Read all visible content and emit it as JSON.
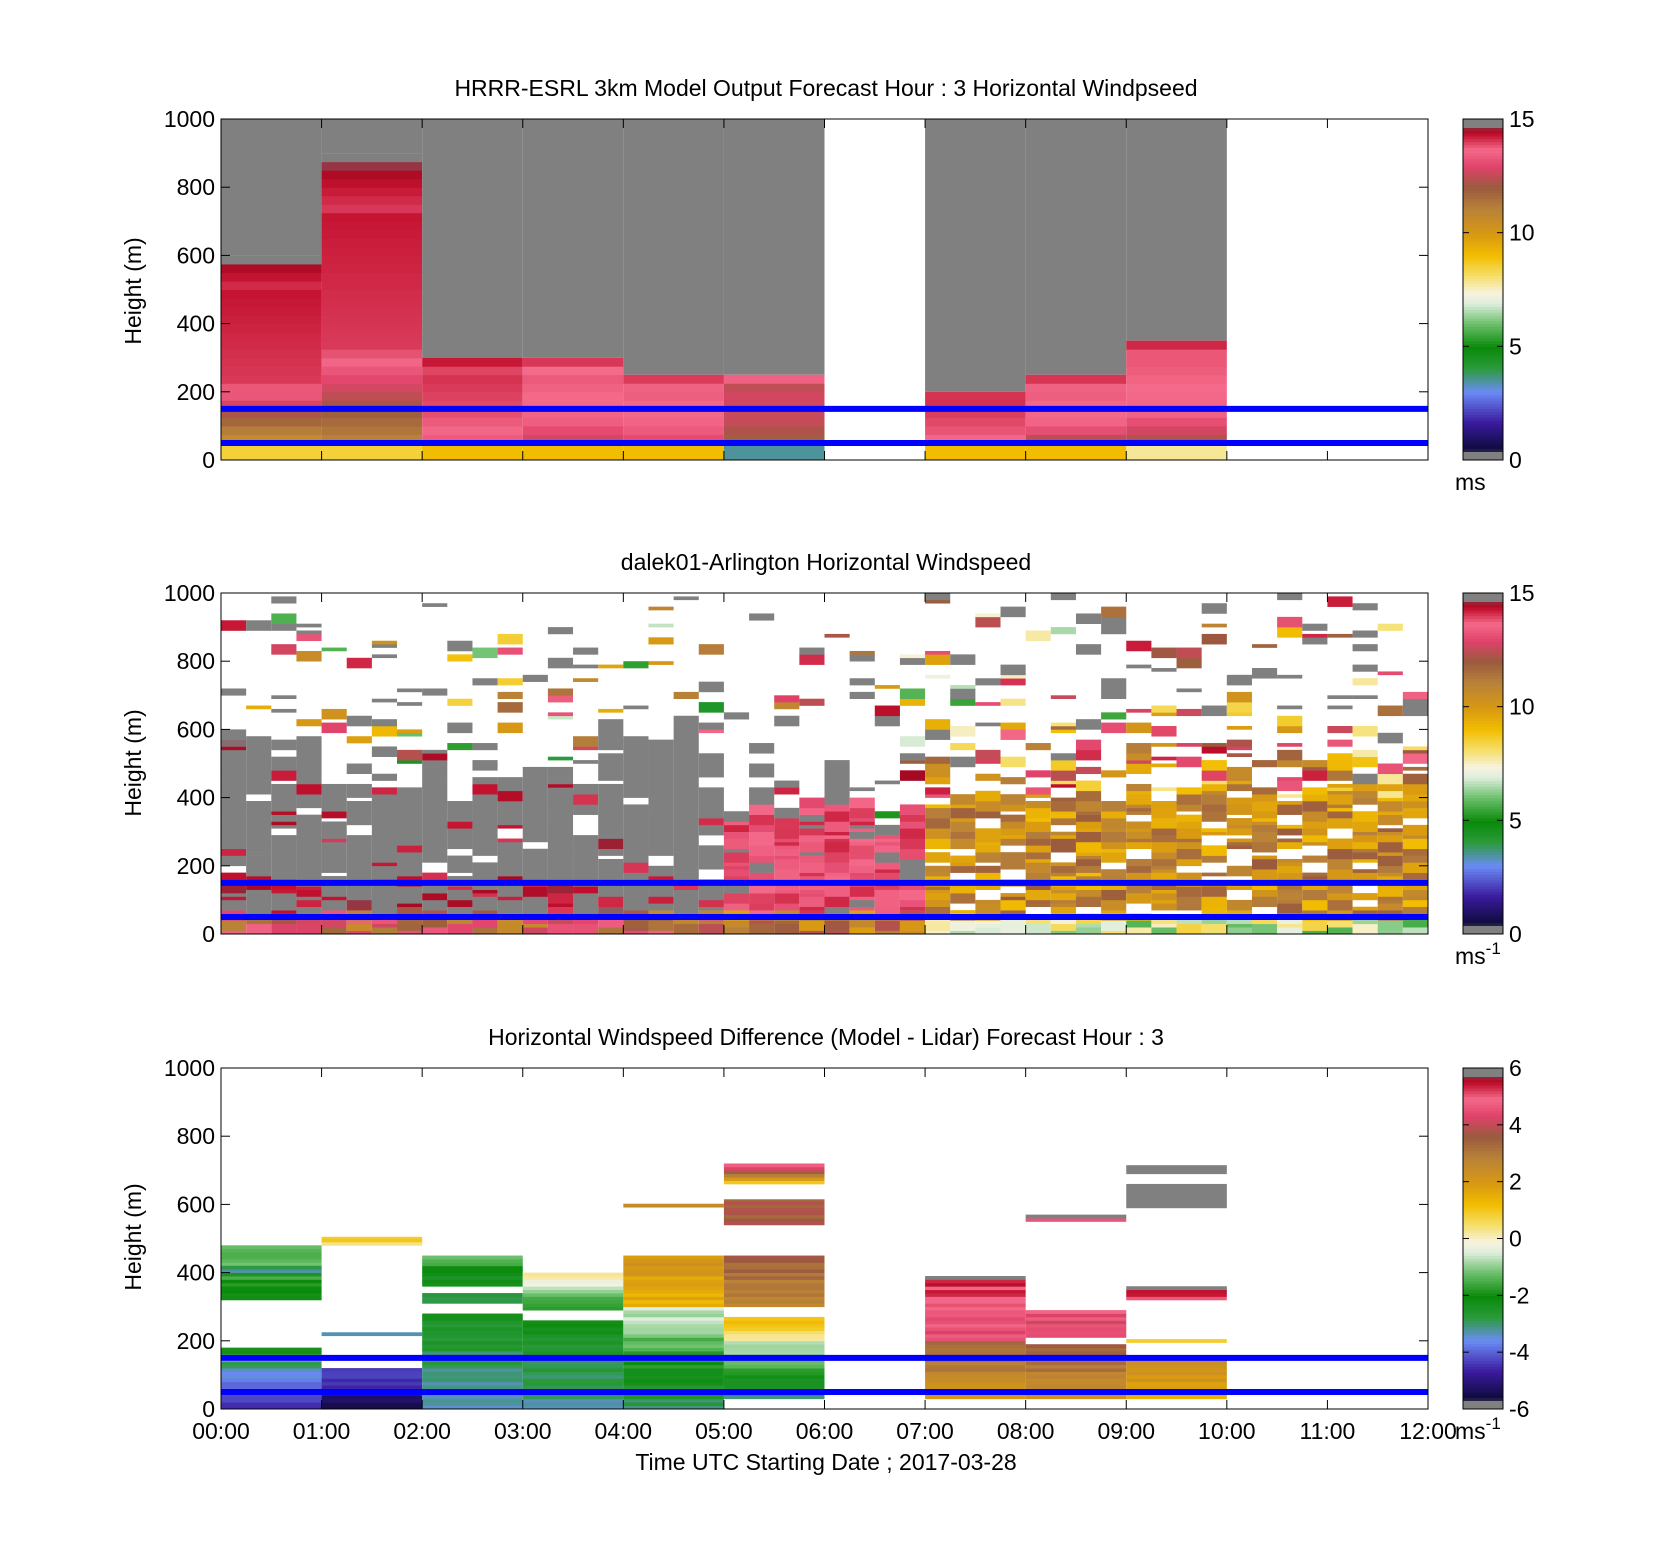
{
  "figure": {
    "xlabel": "Time UTC  Starting Date ; 2017-03-28"
  },
  "chart_data": [
    {
      "type": "heatmap",
      "title": "HRRR-ESRL 3km Model Output   Forecast Hour : 3 Horizontal Windpseed",
      "ylabel": "Height (m)",
      "xlabel": "",
      "xlim": [
        0,
        12
      ],
      "ylim": [
        0,
        1000
      ],
      "yticks": [
        0,
        200,
        400,
        600,
        800,
        1000
      ],
      "xticks": [
        "00:00",
        "01:00",
        "02:00",
        "03:00",
        "04:00",
        "05:00",
        "06:00",
        "07:00",
        "08:00",
        "09:00",
        "10:00",
        "11:00",
        "12:00"
      ],
      "show_xtick_labels": false,
      "colorbar": {
        "min": 0,
        "max": 15,
        "ticks": [
          0,
          5,
          10,
          15
        ],
        "unit": "ms",
        "unit_sup": ""
      },
      "reference_lines_m": [
        50,
        150
      ],
      "grid": false,
      "columns": [
        {
          "t0": 0,
          "t1": 1,
          "top_m": 600,
          "sfc": 8.5,
          "low": 9.6,
          "mid": 14,
          "up": 14.8
        },
        {
          "t0": 1,
          "t1": 2,
          "top_m": 900,
          "sfc": 8.5,
          "low": 10.5,
          "mid": 14,
          "up": 14.8
        },
        {
          "t0": 2,
          "t1": 3,
          "top_m": 300,
          "sfc": 9.0,
          "low": 13,
          "mid": 13.8,
          "up": 14.6
        },
        {
          "t0": 3,
          "t1": 4,
          "top_m": 300,
          "sfc": 9.0,
          "low": 12,
          "mid": 13.5,
          "up": 14.4
        },
        {
          "t0": 4,
          "t1": 5,
          "top_m": 250,
          "sfc": 9.0,
          "low": 12.5,
          "mid": 13.5,
          "up": 14.5
        },
        {
          "t0": 5,
          "t1": 6,
          "top_m": 250,
          "sfc": 3.5,
          "low": 11,
          "mid": 12.5,
          "up": 14.5
        },
        {
          "t0": 7,
          "t1": 8,
          "top_m": 200,
          "sfc": 9.0,
          "low": 13,
          "mid": 13.8,
          "up": 14.5
        },
        {
          "t0": 8,
          "t1": 9,
          "top_m": 250,
          "sfc": 9.0,
          "low": 11,
          "mid": 13.5,
          "up": 14.6
        },
        {
          "t0": 9,
          "t1": 10,
          "top_m": 350,
          "sfc": 7.8,
          "low": 11.5,
          "mid": 13.5,
          "up": 14.5
        }
      ],
      "missing_columns": [
        {
          "t0": 6,
          "t1": 7
        },
        {
          "t0": 10,
          "t1": 12
        }
      ]
    },
    {
      "type": "heatmap",
      "title": "dalek01-Arlington  Horizontal Windspeed",
      "ylabel": "Height (m)",
      "xlabel": "",
      "xlim": [
        0,
        12
      ],
      "ylim": [
        0,
        1000
      ],
      "yticks": [
        0,
        200,
        400,
        600,
        800,
        1000
      ],
      "xticks": [
        "00:00",
        "01:00",
        "02:00",
        "03:00",
        "04:00",
        "05:00",
        "06:00",
        "07:00",
        "08:00",
        "09:00",
        "10:00",
        "11:00",
        "12:00"
      ],
      "show_xtick_labels": false,
      "colorbar": {
        "min": 0,
        "max": 15,
        "ticks": [
          0,
          5,
          10,
          15
        ],
        "unit": "ms",
        "unit_sup": "-1"
      },
      "reference_lines_m": [
        50,
        150
      ],
      "grid": false,
      "column_width_h": 0.25,
      "phases": [
        {
          "t0": 0,
          "t1": 5,
          "typical_top_m": 520,
          "low_speed": 14.5,
          "upper": "saturated"
        },
        {
          "t0": 5,
          "t1": 7,
          "typical_top_m": 400,
          "low_speed": 13.5,
          "upper": "saturated"
        },
        {
          "t0": 7,
          "t1": 12,
          "typical_top_m": 600,
          "low_speed": 10,
          "upper": "mixed"
        }
      ]
    },
    {
      "type": "heatmap",
      "title": "Horizontal Windspeed Difference (Model - Lidar) Forecast Hour : 3",
      "ylabel": "Height (m)",
      "xlabel": "Time UTC  Starting Date ; 2017-03-28",
      "xlim": [
        0,
        12
      ],
      "ylim": [
        0,
        1000
      ],
      "yticks": [
        0,
        200,
        400,
        600,
        800,
        1000
      ],
      "xticks": [
        "00:00",
        "01:00",
        "02:00",
        "03:00",
        "04:00",
        "05:00",
        "06:00",
        "07:00",
        "08:00",
        "09:00",
        "10:00",
        "11:00",
        "12:00"
      ],
      "show_xtick_labels": true,
      "colorbar": {
        "min": -6,
        "max": 6,
        "ticks": [
          -6,
          -4,
          -2,
          0,
          2,
          4,
          6
        ],
        "unit": "ms",
        "unit_sup": "-1"
      },
      "reference_lines_m": [
        50,
        150
      ],
      "grid": false,
      "segments": [
        {
          "t0": 0,
          "t1": 1,
          "y0": 320,
          "y1": 480,
          "v0": -2.2,
          "v1": -1.0
        },
        {
          "t0": 0,
          "t1": 1,
          "y0": 400,
          "y1": 420,
          "v0": -3.0,
          "v1": -3.0
        },
        {
          "t0": 0,
          "t1": 1,
          "y0": 160,
          "y1": 180,
          "v0": -1.8,
          "v1": -1.8
        },
        {
          "t0": 0,
          "t1": 1,
          "y0": 0,
          "y1": 140,
          "v0": -4.8,
          "v1": -2.8
        },
        {
          "t0": 1,
          "t1": 2,
          "y0": 0,
          "y1": 120,
          "v0": -5.5,
          "v1": -4.0
        },
        {
          "t0": 1,
          "t1": 2,
          "y0": 215,
          "y1": 225,
          "v0": -3.0,
          "v1": -3.0
        },
        {
          "t0": 1,
          "t1": 2,
          "y0": 480,
          "y1": 505,
          "v0": 0.5,
          "v1": 1.2
        },
        {
          "t0": 2,
          "t1": 3,
          "y0": 0,
          "y1": 280,
          "v0": -3.4,
          "v1": -2.4
        },
        {
          "t0": 2,
          "t1": 3,
          "y0": 310,
          "y1": 340,
          "v0": -2.8,
          "v1": -2.8
        },
        {
          "t0": 2,
          "t1": 3,
          "y0": 360,
          "y1": 450,
          "v0": -2.6,
          "v1": -1.2
        },
        {
          "t0": 3,
          "t1": 4,
          "y0": 0,
          "y1": 260,
          "v0": -3.3,
          "v1": -2.2
        },
        {
          "t0": 3,
          "t1": 4,
          "y0": 290,
          "y1": 400,
          "v0": -2.0,
          "v1": 0.6
        },
        {
          "t0": 4,
          "t1": 5,
          "y0": 0,
          "y1": 300,
          "v0": -3.0,
          "v1": -0.4
        },
        {
          "t0": 4,
          "t1": 5,
          "y0": 300,
          "y1": 450,
          "v0": 1.4,
          "v1": 2.2
        },
        {
          "t0": 4,
          "t1": 5,
          "y0": 592,
          "y1": 602,
          "v0": 2.6,
          "v1": 2.6
        },
        {
          "t0": 5,
          "t1": 6,
          "y0": 30,
          "y1": 200,
          "v0": -2.8,
          "v1": -0.5
        },
        {
          "t0": 5,
          "t1": 6,
          "y0": 200,
          "y1": 270,
          "v0": 0.4,
          "v1": 1.4
        },
        {
          "t0": 5,
          "t1": 6,
          "y0": 300,
          "y1": 450,
          "v0": 2.6,
          "v1": 3.6
        },
        {
          "t0": 5,
          "t1": 6,
          "y0": 540,
          "y1": 615,
          "v0": 3.6,
          "v1": 3.6
        },
        {
          "t0": 5,
          "t1": 6,
          "y0": 660,
          "y1": 720,
          "v0": 1.2,
          "v1": 5.4
        },
        {
          "t0": 7,
          "t1": 8,
          "y0": 30,
          "y1": 200,
          "v0": 2.2,
          "v1": 3.6
        },
        {
          "t0": 7,
          "t1": 8,
          "y0": 200,
          "y1": 380,
          "v0": 4.4,
          "v1": 5.4
        },
        {
          "t0": 7,
          "t1": 8,
          "y0": 380,
          "y1": 390,
          "v0": 6.2,
          "v1": 6.2
        },
        {
          "t0": 8,
          "t1": 9,
          "y0": 30,
          "y1": 190,
          "v0": 2.4,
          "v1": 3.6
        },
        {
          "t0": 8,
          "t1": 9,
          "y0": 210,
          "y1": 290,
          "v0": 4.2,
          "v1": 4.6
        },
        {
          "t0": 8,
          "t1": 9,
          "y0": 550,
          "y1": 560,
          "v0": 4.6,
          "v1": 4.6
        },
        {
          "t0": 8,
          "t1": 9,
          "y0": 560,
          "y1": 570,
          "v0": 6.2,
          "v1": 6.2
        },
        {
          "t0": 9,
          "t1": 10,
          "y0": 30,
          "y1": 150,
          "v0": 1.6,
          "v1": 2.6
        },
        {
          "t0": 9,
          "t1": 10,
          "y0": 195,
          "y1": 205,
          "v0": 1.0,
          "v1": 1.0
        },
        {
          "t0": 9,
          "t1": 10,
          "y0": 320,
          "y1": 360,
          "v0": 4.8,
          "v1": 6.2
        },
        {
          "t0": 9,
          "t1": 10,
          "y0": 590,
          "y1": 660,
          "v0": 6.2,
          "v1": 6.2
        },
        {
          "t0": 9,
          "t1": 10,
          "y0": 690,
          "y1": 715,
          "v0": 6.2,
          "v1": 6.2
        }
      ]
    }
  ]
}
